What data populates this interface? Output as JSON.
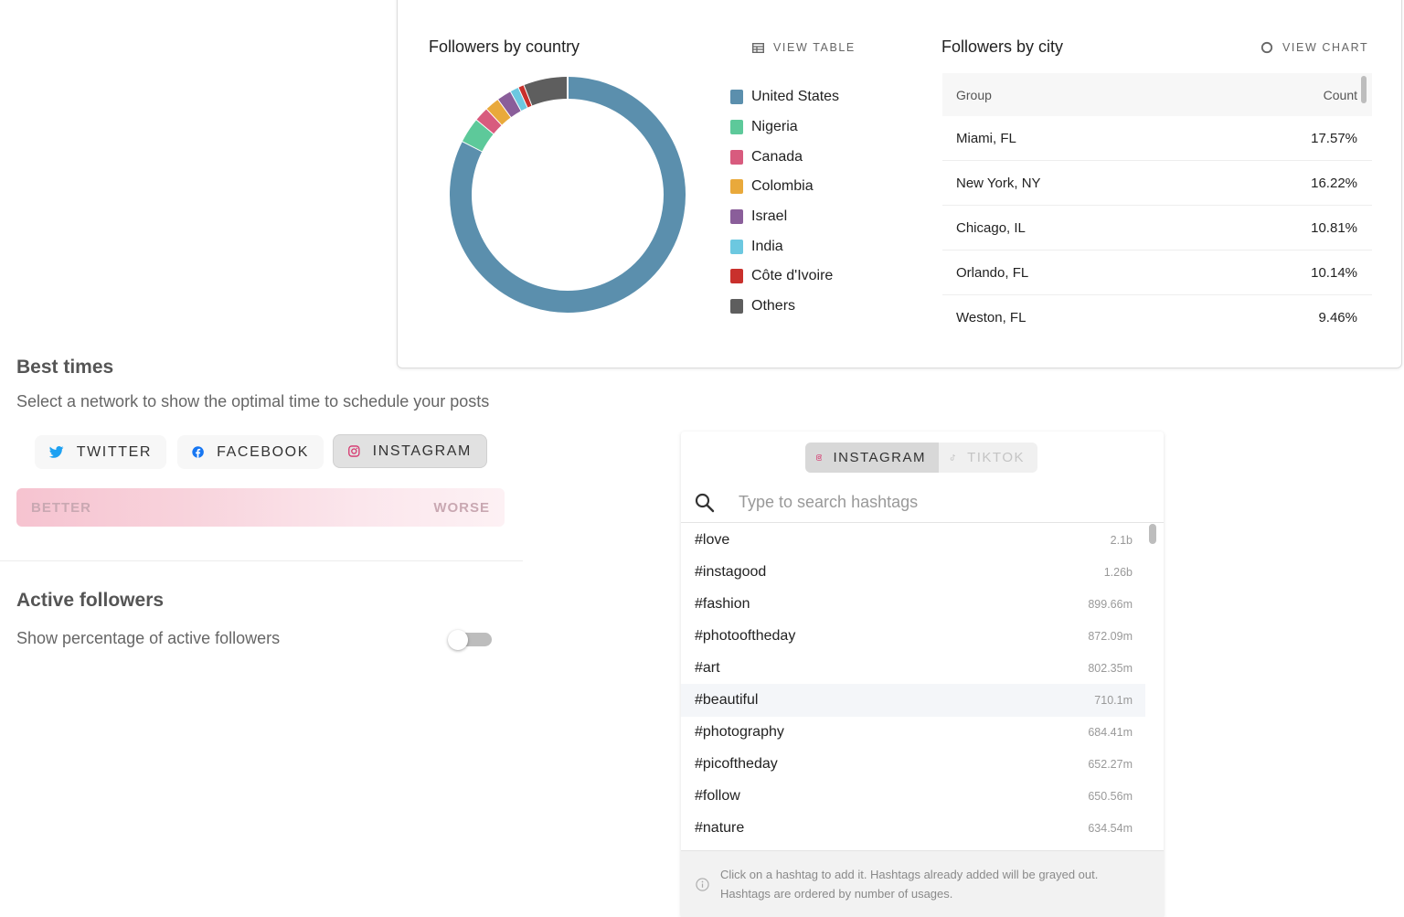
{
  "country_card": {
    "title": "Followers by country",
    "view_table_label": "VIEW TABLE",
    "chart_data": {
      "type": "pie",
      "style": "donut",
      "categories": [
        "United States",
        "Nigeria",
        "Canada",
        "Colombia",
        "Israel",
        "India",
        "Côte d'Ivoire",
        "Others"
      ],
      "values": [
        82.5,
        3.5,
        2.0,
        2.0,
        2.0,
        1.2,
        0.8,
        6.0
      ],
      "colors": [
        "#5b8fad",
        "#5dc99a",
        "#d85b7e",
        "#e9a93b",
        "#8a5e9a",
        "#6cc8e0",
        "#c9302c",
        "#5e5e5e"
      ],
      "legend_position": "right"
    }
  },
  "city_card": {
    "title": "Followers by city",
    "view_chart_label": "VIEW CHART",
    "columns": {
      "group": "Group",
      "count": "Count"
    },
    "rows": [
      {
        "group": "Miami, FL",
        "count": "17.57%"
      },
      {
        "group": "New York, NY",
        "count": "16.22%"
      },
      {
        "group": "Chicago, IL",
        "count": "10.81%"
      },
      {
        "group": "Orlando, FL",
        "count": "10.14%"
      },
      {
        "group": "Weston, FL",
        "count": "9.46%"
      }
    ]
  },
  "best_times": {
    "title": "Best times",
    "subtitle": "Select a network to show the optimal time to schedule your posts",
    "networks": [
      {
        "label": "TWITTER",
        "icon": "twitter-icon",
        "active": false
      },
      {
        "label": "FACEBOOK",
        "icon": "facebook-icon",
        "active": false
      },
      {
        "label": "INSTAGRAM",
        "icon": "instagram-icon",
        "active": true
      }
    ],
    "scale": {
      "better": "BETTER",
      "worse": "WORSE"
    }
  },
  "active_followers": {
    "title": "Active followers",
    "toggle_label": "Show percentage of active followers",
    "toggle_on": false
  },
  "hashtags": {
    "tabs": [
      {
        "label": "INSTAGRAM",
        "icon": "instagram-icon",
        "active": true
      },
      {
        "label": "TIKTOK",
        "icon": "tiktok-icon",
        "active": false
      }
    ],
    "search_placeholder": "Type to search hashtags",
    "items": [
      {
        "tag": "#love",
        "count": "2.1b"
      },
      {
        "tag": "#instagood",
        "count": "1.26b"
      },
      {
        "tag": "#fashion",
        "count": "899.66m"
      },
      {
        "tag": "#photooftheday",
        "count": "872.09m"
      },
      {
        "tag": "#art",
        "count": "802.35m"
      },
      {
        "tag": "#beautiful",
        "count": "710.1m"
      },
      {
        "tag": "#photography",
        "count": "684.41m"
      },
      {
        "tag": "#picoftheday",
        "count": "652.27m"
      },
      {
        "tag": "#follow",
        "count": "650.56m"
      },
      {
        "tag": "#nature",
        "count": "634.54m"
      }
    ],
    "hovered_index": 5,
    "footer_line1": "Click on a hashtag to add it. Hashtags already added will be grayed out.",
    "footer_line2": "Hashtags are ordered by number of usages."
  }
}
